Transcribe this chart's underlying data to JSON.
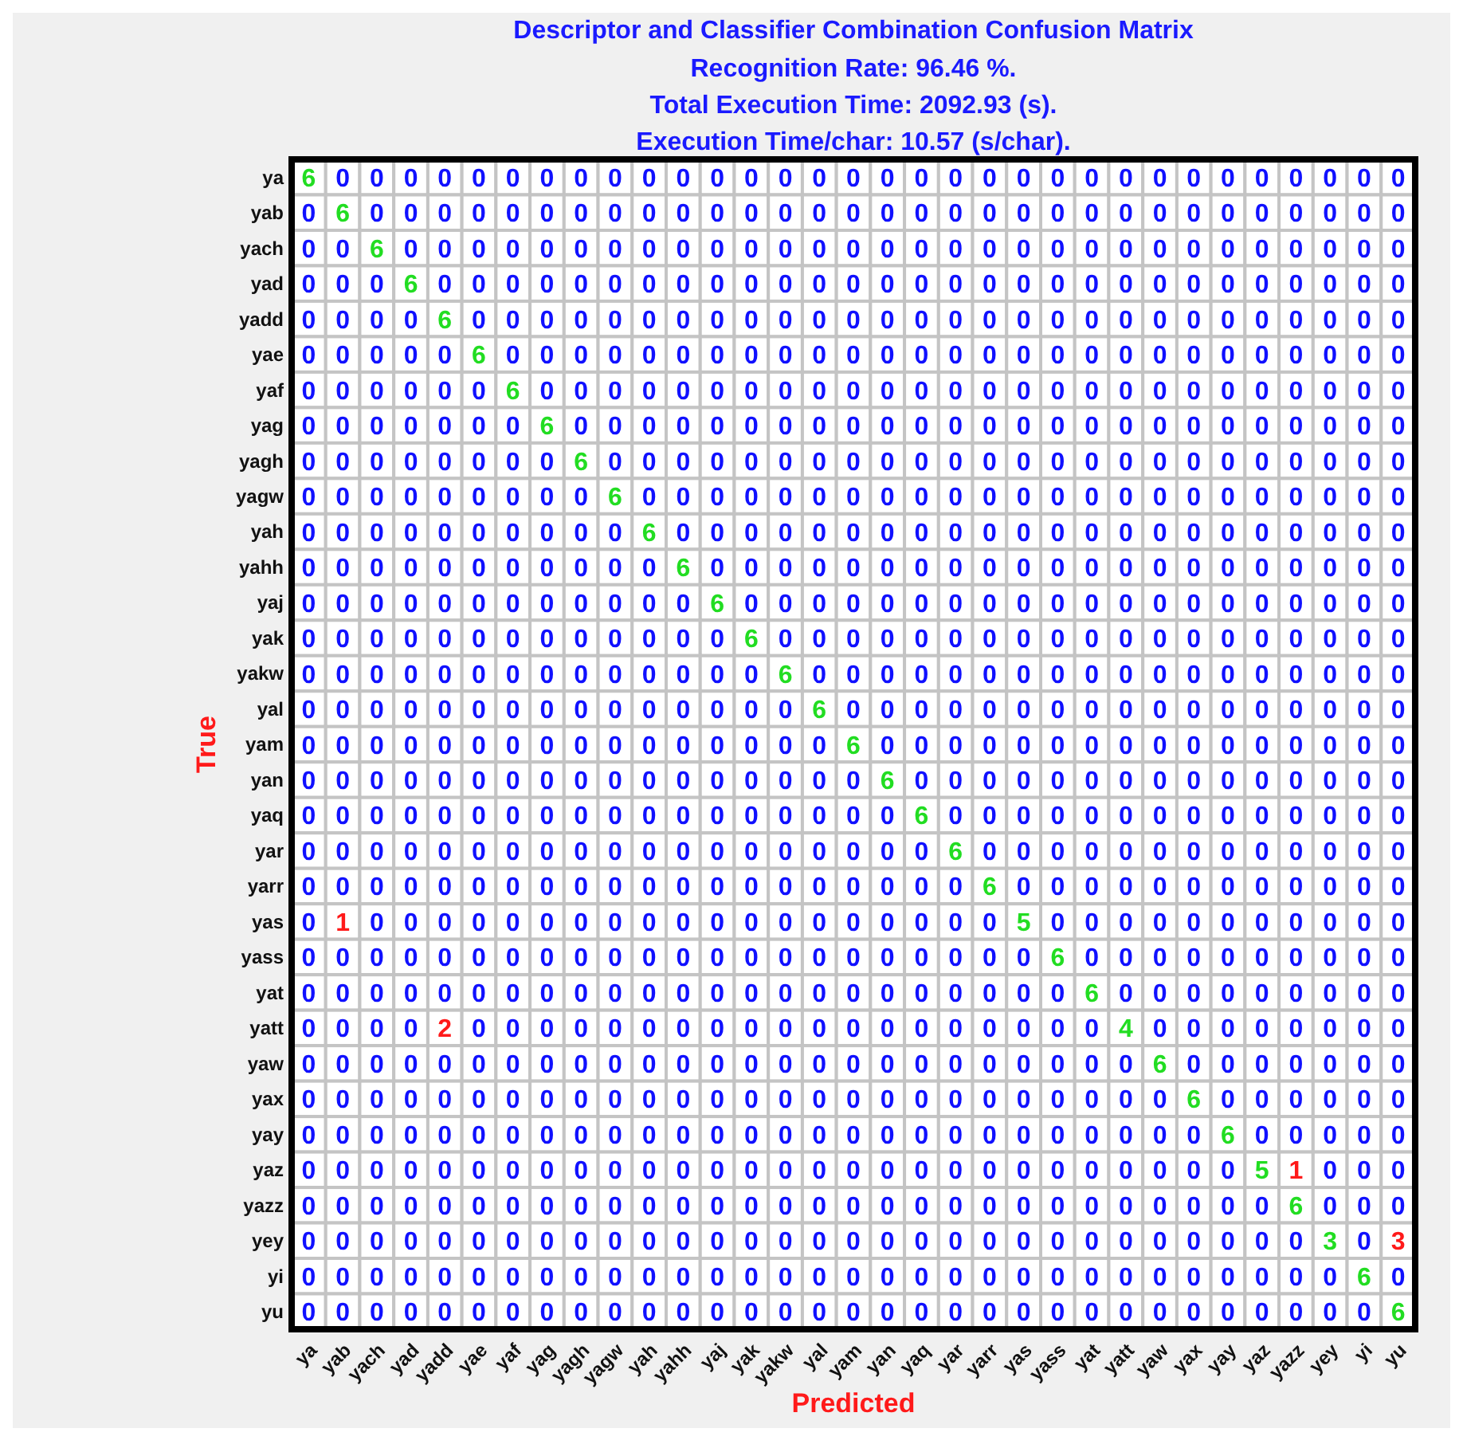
{
  "chart_data": {
    "type": "heatmap",
    "title": "Descriptor and Classifier Combination Confusion Matrix",
    "subtitle": "Recognition Rate:  96.46 %.\nTotal Execution Time:  2092.93 (s).\nExecution Time/char:  10.57 (s/char).",
    "xlabel": "Predicted",
    "ylabel": "True",
    "data_labels": true,
    "categories": [
      "ya",
      "yab",
      "yach",
      "yad",
      "yadd",
      "yae",
      "yaf",
      "yag",
      "yagh",
      "yagw",
      "yah",
      "yahh",
      "yaj",
      "yak",
      "yakw",
      "yal",
      "yam",
      "yan",
      "yaq",
      "yar",
      "yarr",
      "yas",
      "yass",
      "yat",
      "yatt",
      "yaw",
      "yax",
      "yay",
      "yaz",
      "yazz",
      "yey",
      "yi",
      "yu"
    ],
    "y_categories": [
      "ya",
      "yab",
      "yach",
      "yad",
      "yadd",
      "yae",
      "yaf",
      "yag",
      "yagh",
      "yagw",
      "yah",
      "yahh",
      "yaj",
      "yak",
      "yakw",
      "yal",
      "yam",
      "yan",
      "yaq",
      "yar",
      "yarr",
      "yas",
      "yass",
      "yat",
      "yatt",
      "yaw",
      "yax",
      "yay",
      "yaz",
      "yazz",
      "yey",
      "yi",
      "yu"
    ],
    "cells": [
      [
        6,
        0,
        0,
        0,
        0,
        0,
        0,
        0,
        0,
        0,
        0,
        0,
        0,
        0,
        0,
        0,
        0,
        0,
        0,
        0,
        0,
        0,
        0,
        0,
        0,
        0,
        0,
        0,
        0,
        0,
        0,
        0,
        0
      ],
      [
        0,
        6,
        0,
        0,
        0,
        0,
        0,
        0,
        0,
        0,
        0,
        0,
        0,
        0,
        0,
        0,
        0,
        0,
        0,
        0,
        0,
        0,
        0,
        0,
        0,
        0,
        0,
        0,
        0,
        0,
        0,
        0,
        0
      ],
      [
        0,
        0,
        6,
        0,
        0,
        0,
        0,
        0,
        0,
        0,
        0,
        0,
        0,
        0,
        0,
        0,
        0,
        0,
        0,
        0,
        0,
        0,
        0,
        0,
        0,
        0,
        0,
        0,
        0,
        0,
        0,
        0,
        0
      ],
      [
        0,
        0,
        0,
        6,
        0,
        0,
        0,
        0,
        0,
        0,
        0,
        0,
        0,
        0,
        0,
        0,
        0,
        0,
        0,
        0,
        0,
        0,
        0,
        0,
        0,
        0,
        0,
        0,
        0,
        0,
        0,
        0,
        0
      ],
      [
        0,
        0,
        0,
        0,
        6,
        0,
        0,
        0,
        0,
        0,
        0,
        0,
        0,
        0,
        0,
        0,
        0,
        0,
        0,
        0,
        0,
        0,
        0,
        0,
        0,
        0,
        0,
        0,
        0,
        0,
        0,
        0,
        0
      ],
      [
        0,
        0,
        0,
        0,
        0,
        6,
        0,
        0,
        0,
        0,
        0,
        0,
        0,
        0,
        0,
        0,
        0,
        0,
        0,
        0,
        0,
        0,
        0,
        0,
        0,
        0,
        0,
        0,
        0,
        0,
        0,
        0,
        0
      ],
      [
        0,
        0,
        0,
        0,
        0,
        0,
        6,
        0,
        0,
        0,
        0,
        0,
        0,
        0,
        0,
        0,
        0,
        0,
        0,
        0,
        0,
        0,
        0,
        0,
        0,
        0,
        0,
        0,
        0,
        0,
        0,
        0,
        0
      ],
      [
        0,
        0,
        0,
        0,
        0,
        0,
        0,
        6,
        0,
        0,
        0,
        0,
        0,
        0,
        0,
        0,
        0,
        0,
        0,
        0,
        0,
        0,
        0,
        0,
        0,
        0,
        0,
        0,
        0,
        0,
        0,
        0,
        0
      ],
      [
        0,
        0,
        0,
        0,
        0,
        0,
        0,
        0,
        6,
        0,
        0,
        0,
        0,
        0,
        0,
        0,
        0,
        0,
        0,
        0,
        0,
        0,
        0,
        0,
        0,
        0,
        0,
        0,
        0,
        0,
        0,
        0,
        0
      ],
      [
        0,
        0,
        0,
        0,
        0,
        0,
        0,
        0,
        0,
        6,
        0,
        0,
        0,
        0,
        0,
        0,
        0,
        0,
        0,
        0,
        0,
        0,
        0,
        0,
        0,
        0,
        0,
        0,
        0,
        0,
        0,
        0,
        0
      ],
      [
        0,
        0,
        0,
        0,
        0,
        0,
        0,
        0,
        0,
        0,
        6,
        0,
        0,
        0,
        0,
        0,
        0,
        0,
        0,
        0,
        0,
        0,
        0,
        0,
        0,
        0,
        0,
        0,
        0,
        0,
        0,
        0,
        0
      ],
      [
        0,
        0,
        0,
        0,
        0,
        0,
        0,
        0,
        0,
        0,
        0,
        6,
        0,
        0,
        0,
        0,
        0,
        0,
        0,
        0,
        0,
        0,
        0,
        0,
        0,
        0,
        0,
        0,
        0,
        0,
        0,
        0,
        0
      ],
      [
        0,
        0,
        0,
        0,
        0,
        0,
        0,
        0,
        0,
        0,
        0,
        0,
        6,
        0,
        0,
        0,
        0,
        0,
        0,
        0,
        0,
        0,
        0,
        0,
        0,
        0,
        0,
        0,
        0,
        0,
        0,
        0,
        0
      ],
      [
        0,
        0,
        0,
        0,
        0,
        0,
        0,
        0,
        0,
        0,
        0,
        0,
        0,
        6,
        0,
        0,
        0,
        0,
        0,
        0,
        0,
        0,
        0,
        0,
        0,
        0,
        0,
        0,
        0,
        0,
        0,
        0,
        0
      ],
      [
        0,
        0,
        0,
        0,
        0,
        0,
        0,
        0,
        0,
        0,
        0,
        0,
        0,
        0,
        6,
        0,
        0,
        0,
        0,
        0,
        0,
        0,
        0,
        0,
        0,
        0,
        0,
        0,
        0,
        0,
        0,
        0,
        0
      ],
      [
        0,
        0,
        0,
        0,
        0,
        0,
        0,
        0,
        0,
        0,
        0,
        0,
        0,
        0,
        0,
        6,
        0,
        0,
        0,
        0,
        0,
        0,
        0,
        0,
        0,
        0,
        0,
        0,
        0,
        0,
        0,
        0,
        0
      ],
      [
        0,
        0,
        0,
        0,
        0,
        0,
        0,
        0,
        0,
        0,
        0,
        0,
        0,
        0,
        0,
        0,
        6,
        0,
        0,
        0,
        0,
        0,
        0,
        0,
        0,
        0,
        0,
        0,
        0,
        0,
        0,
        0,
        0
      ],
      [
        0,
        0,
        0,
        0,
        0,
        0,
        0,
        0,
        0,
        0,
        0,
        0,
        0,
        0,
        0,
        0,
        0,
        6,
        0,
        0,
        0,
        0,
        0,
        0,
        0,
        0,
        0,
        0,
        0,
        0,
        0,
        0,
        0
      ],
      [
        0,
        0,
        0,
        0,
        0,
        0,
        0,
        0,
        0,
        0,
        0,
        0,
        0,
        0,
        0,
        0,
        0,
        0,
        6,
        0,
        0,
        0,
        0,
        0,
        0,
        0,
        0,
        0,
        0,
        0,
        0,
        0,
        0
      ],
      [
        0,
        0,
        0,
        0,
        0,
        0,
        0,
        0,
        0,
        0,
        0,
        0,
        0,
        0,
        0,
        0,
        0,
        0,
        0,
        6,
        0,
        0,
        0,
        0,
        0,
        0,
        0,
        0,
        0,
        0,
        0,
        0,
        0
      ],
      [
        0,
        0,
        0,
        0,
        0,
        0,
        0,
        0,
        0,
        0,
        0,
        0,
        0,
        0,
        0,
        0,
        0,
        0,
        0,
        0,
        6,
        0,
        0,
        0,
        0,
        0,
        0,
        0,
        0,
        0,
        0,
        0,
        0
      ],
      [
        0,
        1,
        0,
        0,
        0,
        0,
        0,
        0,
        0,
        0,
        0,
        0,
        0,
        0,
        0,
        0,
        0,
        0,
        0,
        0,
        0,
        5,
        0,
        0,
        0,
        0,
        0,
        0,
        0,
        0,
        0,
        0,
        0
      ],
      [
        0,
        0,
        0,
        0,
        0,
        0,
        0,
        0,
        0,
        0,
        0,
        0,
        0,
        0,
        0,
        0,
        0,
        0,
        0,
        0,
        0,
        0,
        6,
        0,
        0,
        0,
        0,
        0,
        0,
        0,
        0,
        0,
        0
      ],
      [
        0,
        0,
        0,
        0,
        0,
        0,
        0,
        0,
        0,
        0,
        0,
        0,
        0,
        0,
        0,
        0,
        0,
        0,
        0,
        0,
        0,
        0,
        0,
        6,
        0,
        0,
        0,
        0,
        0,
        0,
        0,
        0,
        0
      ],
      [
        0,
        0,
        0,
        0,
        2,
        0,
        0,
        0,
        0,
        0,
        0,
        0,
        0,
        0,
        0,
        0,
        0,
        0,
        0,
        0,
        0,
        0,
        0,
        0,
        4,
        0,
        0,
        0,
        0,
        0,
        0,
        0,
        0
      ],
      [
        0,
        0,
        0,
        0,
        0,
        0,
        0,
        0,
        0,
        0,
        0,
        0,
        0,
        0,
        0,
        0,
        0,
        0,
        0,
        0,
        0,
        0,
        0,
        0,
        0,
        6,
        0,
        0,
        0,
        0,
        0,
        0,
        0
      ],
      [
        0,
        0,
        0,
        0,
        0,
        0,
        0,
        0,
        0,
        0,
        0,
        0,
        0,
        0,
        0,
        0,
        0,
        0,
        0,
        0,
        0,
        0,
        0,
        0,
        0,
        0,
        6,
        0,
        0,
        0,
        0,
        0,
        0
      ],
      [
        0,
        0,
        0,
        0,
        0,
        0,
        0,
        0,
        0,
        0,
        0,
        0,
        0,
        0,
        0,
        0,
        0,
        0,
        0,
        0,
        0,
        0,
        0,
        0,
        0,
        0,
        0,
        6,
        0,
        0,
        0,
        0,
        0
      ],
      [
        0,
        0,
        0,
        0,
        0,
        0,
        0,
        0,
        0,
        0,
        0,
        0,
        0,
        0,
        0,
        0,
        0,
        0,
        0,
        0,
        0,
        0,
        0,
        0,
        0,
        0,
        0,
        0,
        5,
        1,
        0,
        0,
        0
      ],
      [
        0,
        0,
        0,
        0,
        0,
        0,
        0,
        0,
        0,
        0,
        0,
        0,
        0,
        0,
        0,
        0,
        0,
        0,
        0,
        0,
        0,
        0,
        0,
        0,
        0,
        0,
        0,
        0,
        0,
        6,
        0,
        0,
        0
      ],
      [
        0,
        0,
        0,
        0,
        0,
        0,
        0,
        0,
        0,
        0,
        0,
        0,
        0,
        0,
        0,
        0,
        0,
        0,
        0,
        0,
        0,
        0,
        0,
        0,
        0,
        0,
        0,
        0,
        0,
        0,
        3,
        0,
        3
      ],
      [
        0,
        0,
        0,
        0,
        0,
        0,
        0,
        0,
        0,
        0,
        0,
        0,
        0,
        0,
        0,
        0,
        0,
        0,
        0,
        0,
        0,
        0,
        0,
        0,
        0,
        0,
        0,
        0,
        0,
        0,
        0,
        6,
        0
      ],
      [
        0,
        0,
        0,
        0,
        0,
        0,
        0,
        0,
        0,
        0,
        0,
        0,
        0,
        0,
        0,
        0,
        0,
        0,
        0,
        0,
        0,
        0,
        0,
        0,
        0,
        0,
        0,
        0,
        0,
        0,
        0,
        0,
        6
      ]
    ]
  }
}
